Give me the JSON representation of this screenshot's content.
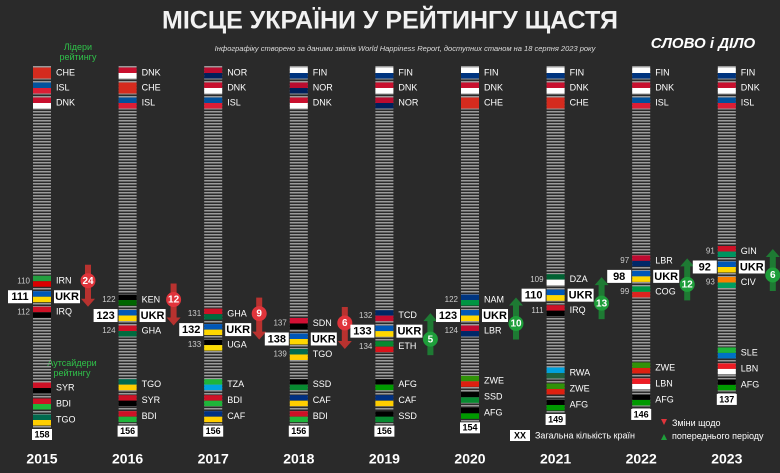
{
  "header": {
    "title": "МІСЦЕ УКРАЇНИ У РЕЙТИНГУ ЩАСТЯ",
    "subtitle": "Інфографіку створено за даними звітів World Happiness Report, доступних станом на 18 серпня 2023 року",
    "brand": "СЛОВО і ДІЛО"
  },
  "labels": {
    "leaders": "Лідери рейтингу",
    "outsiders": "Аутсайдери рейтингу",
    "legend_total_sample": "XX",
    "legend_total": "Загальна кількість країн",
    "legend_change": "Зміни щодо попереднього періоду"
  },
  "years": [
    {
      "year": "2015",
      "leaders": [
        {
          "code": "CHE",
          "flag": [
            "#d52b1e",
            "#d52b1e"
          ]
        },
        {
          "code": "ISL",
          "flag": [
            "#02529c",
            "#dc1e35"
          ]
        },
        {
          "code": "DNK",
          "flag": [
            "#c8102e",
            "#ffffff"
          ]
        }
      ],
      "near": [
        {
          "rank": 110,
          "code": "IRN",
          "flag": [
            "#239f40",
            "#da0000"
          ]
        },
        {
          "rank": 111,
          "code": "UKR",
          "flag": [
            "#0057b7",
            "#ffd700"
          ]
        },
        {
          "rank": 112,
          "code": "IRQ",
          "flag": [
            "#ce1126",
            "#000000"
          ]
        }
      ],
      "change": {
        "value": 24,
        "direction": "down"
      },
      "outsiders": [
        {
          "code": "SYR",
          "flag": [
            "#ce1126",
            "#000000"
          ]
        },
        {
          "code": "BDI",
          "flag": [
            "#ce1126",
            "#1eb53a"
          ]
        },
        {
          "code": "TGO",
          "flag": [
            "#006a4e",
            "#ffce00"
          ]
        }
      ],
      "total": 158
    },
    {
      "year": "2016",
      "leaders": [
        {
          "code": "DNK",
          "flag": [
            "#c8102e",
            "#ffffff"
          ]
        },
        {
          "code": "CHE",
          "flag": [
            "#d52b1e",
            "#d52b1e"
          ]
        },
        {
          "code": "ISL",
          "flag": [
            "#02529c",
            "#dc1e35"
          ]
        }
      ],
      "near": [
        {
          "rank": 122,
          "code": "KEN",
          "flag": [
            "#000000",
            "#006600"
          ]
        },
        {
          "rank": 123,
          "code": "UKR",
          "flag": [
            "#0057b7",
            "#ffd700"
          ]
        },
        {
          "rank": 124,
          "code": "GHA",
          "flag": [
            "#ce1126",
            "#006b3f"
          ]
        }
      ],
      "change": {
        "value": 12,
        "direction": "down"
      },
      "outsiders": [
        {
          "code": "TGO",
          "flag": [
            "#006a4e",
            "#ffce00"
          ]
        },
        {
          "code": "SYR",
          "flag": [
            "#ce1126",
            "#000000"
          ]
        },
        {
          "code": "BDI",
          "flag": [
            "#ce1126",
            "#1eb53a"
          ]
        }
      ],
      "total": 156
    },
    {
      "year": "2017",
      "leaders": [
        {
          "code": "NOR",
          "flag": [
            "#ba0c2f",
            "#00205b"
          ]
        },
        {
          "code": "DNK",
          "flag": [
            "#c8102e",
            "#ffffff"
          ]
        },
        {
          "code": "ISL",
          "flag": [
            "#02529c",
            "#dc1e35"
          ]
        }
      ],
      "near": [
        {
          "rank": 131,
          "code": "GHA",
          "flag": [
            "#ce1126",
            "#006b3f"
          ]
        },
        {
          "rank": 132,
          "code": "UKR",
          "flag": [
            "#0057b7",
            "#ffd700"
          ]
        },
        {
          "rank": 133,
          "code": "UGA",
          "flag": [
            "#000000",
            "#fcdc04"
          ]
        }
      ],
      "change": {
        "value": 9,
        "direction": "down"
      },
      "outsiders": [
        {
          "code": "TZA",
          "flag": [
            "#1eb53a",
            "#00a3dd"
          ]
        },
        {
          "code": "BDI",
          "flag": [
            "#ce1126",
            "#1eb53a"
          ]
        },
        {
          "code": "CAF",
          "flag": [
            "#003082",
            "#ffce00"
          ]
        }
      ],
      "total": 156
    },
    {
      "year": "2018",
      "leaders": [
        {
          "code": "FIN",
          "flag": [
            "#ffffff",
            "#003580"
          ]
        },
        {
          "code": "NOR",
          "flag": [
            "#ba0c2f",
            "#00205b"
          ]
        },
        {
          "code": "DNK",
          "flag": [
            "#c8102e",
            "#ffffff"
          ]
        }
      ],
      "near": [
        {
          "rank": 137,
          "code": "SDN",
          "flag": [
            "#d21034",
            "#000000"
          ]
        },
        {
          "rank": 138,
          "code": "UKR",
          "flag": [
            "#0057b7",
            "#ffd700"
          ]
        },
        {
          "rank": 139,
          "code": "TGO",
          "flag": [
            "#006a4e",
            "#ffce00"
          ]
        }
      ],
      "change": {
        "value": 6,
        "direction": "down"
      },
      "outsiders": [
        {
          "code": "SSD",
          "flag": [
            "#000000",
            "#078930"
          ]
        },
        {
          "code": "CAF",
          "flag": [
            "#003082",
            "#ffce00"
          ]
        },
        {
          "code": "BDI",
          "flag": [
            "#ce1126",
            "#1eb53a"
          ]
        }
      ],
      "total": 156
    },
    {
      "year": "2019",
      "leaders": [
        {
          "code": "FIN",
          "flag": [
            "#ffffff",
            "#003580"
          ]
        },
        {
          "code": "DNK",
          "flag": [
            "#c8102e",
            "#ffffff"
          ]
        },
        {
          "code": "NOR",
          "flag": [
            "#ba0c2f",
            "#00205b"
          ]
        }
      ],
      "near": [
        {
          "rank": 132,
          "code": "TCD",
          "flag": [
            "#002664",
            "#c60c30"
          ]
        },
        {
          "rank": 133,
          "code": "UKR",
          "flag": [
            "#0057b7",
            "#ffd700"
          ]
        },
        {
          "rank": 134,
          "code": "ETH",
          "flag": [
            "#078930",
            "#da121a"
          ]
        }
      ],
      "change": {
        "value": 5,
        "direction": "up"
      },
      "outsiders": [
        {
          "code": "AFG",
          "flag": [
            "#000000",
            "#009900"
          ]
        },
        {
          "code": "CAF",
          "flag": [
            "#003082",
            "#ffce00"
          ]
        },
        {
          "code": "SSD",
          "flag": [
            "#000000",
            "#078930"
          ]
        }
      ],
      "total": 156
    },
    {
      "year": "2020",
      "leaders": [
        {
          "code": "FIN",
          "flag": [
            "#ffffff",
            "#003580"
          ]
        },
        {
          "code": "DNK",
          "flag": [
            "#c8102e",
            "#ffffff"
          ]
        },
        {
          "code": "CHE",
          "flag": [
            "#d52b1e",
            "#d52b1e"
          ]
        }
      ],
      "near": [
        {
          "rank": 122,
          "code": "NAM",
          "flag": [
            "#003580",
            "#009543"
          ]
        },
        {
          "rank": 123,
          "code": "UKR",
          "flag": [
            "#0057b7",
            "#ffd700"
          ]
        },
        {
          "rank": 124,
          "code": "LBR",
          "flag": [
            "#bf0a30",
            "#002868"
          ]
        }
      ],
      "change": {
        "value": 10,
        "direction": "up"
      },
      "outsiders": [
        {
          "code": "ZWE",
          "flag": [
            "#319208",
            "#de2010"
          ]
        },
        {
          "code": "SSD",
          "flag": [
            "#000000",
            "#078930"
          ]
        },
        {
          "code": "AFG",
          "flag": [
            "#000000",
            "#009900"
          ]
        }
      ],
      "total": 154
    },
    {
      "year": "2021",
      "leaders": [
        {
          "code": "FIN",
          "flag": [
            "#ffffff",
            "#003580"
          ]
        },
        {
          "code": "DNK",
          "flag": [
            "#c8102e",
            "#ffffff"
          ]
        },
        {
          "code": "CHE",
          "flag": [
            "#d52b1e",
            "#d52b1e"
          ]
        }
      ],
      "near": [
        {
          "rank": 109,
          "code": "DZA",
          "flag": [
            "#006233",
            "#ffffff"
          ]
        },
        {
          "rank": 110,
          "code": "UKR",
          "flag": [
            "#0057b7",
            "#ffd700"
          ]
        },
        {
          "rank": 111,
          "code": "IRQ",
          "flag": [
            "#ce1126",
            "#000000"
          ]
        }
      ],
      "change": {
        "value": 13,
        "direction": "up"
      },
      "outsiders": [
        {
          "code": "RWA",
          "flag": [
            "#00a1de",
            "#20603d"
          ]
        },
        {
          "code": "ZWE",
          "flag": [
            "#319208",
            "#de2010"
          ]
        },
        {
          "code": "AFG",
          "flag": [
            "#000000",
            "#009900"
          ]
        }
      ],
      "total": 149
    },
    {
      "year": "2022",
      "leaders": [
        {
          "code": "FIN",
          "flag": [
            "#ffffff",
            "#003580"
          ]
        },
        {
          "code": "DNK",
          "flag": [
            "#c8102e",
            "#ffffff"
          ]
        },
        {
          "code": "ISL",
          "flag": [
            "#02529c",
            "#dc1e35"
          ]
        }
      ],
      "near": [
        {
          "rank": 97,
          "code": "LBR",
          "flag": [
            "#bf0a30",
            "#002868"
          ]
        },
        {
          "rank": 98,
          "code": "UKR",
          "flag": [
            "#0057b7",
            "#ffd700"
          ]
        },
        {
          "rank": 99,
          "code": "COG",
          "flag": [
            "#009543",
            "#dc241f"
          ]
        }
      ],
      "change": {
        "value": 12,
        "direction": "up"
      },
      "outsiders": [
        {
          "code": "ZWE",
          "flag": [
            "#319208",
            "#de2010"
          ]
        },
        {
          "code": "LBN",
          "flag": [
            "#ed1c24",
            "#ffffff"
          ]
        },
        {
          "code": "AFG",
          "flag": [
            "#000000",
            "#009900"
          ]
        }
      ],
      "total": 146
    },
    {
      "year": "2023",
      "leaders": [
        {
          "code": "FIN",
          "flag": [
            "#ffffff",
            "#003580"
          ]
        },
        {
          "code": "DNK",
          "flag": [
            "#c8102e",
            "#ffffff"
          ]
        },
        {
          "code": "ISL",
          "flag": [
            "#02529c",
            "#dc1e35"
          ]
        }
      ],
      "near": [
        {
          "rank": 91,
          "code": "GIN",
          "flag": [
            "#ce1126",
            "#009460"
          ]
        },
        {
          "rank": 92,
          "code": "UKR",
          "flag": [
            "#0057b7",
            "#ffd700"
          ]
        },
        {
          "rank": 93,
          "code": "CIV",
          "flag": [
            "#f77f00",
            "#009e60"
          ]
        }
      ],
      "change": {
        "value": 6,
        "direction": "up"
      },
      "outsiders": [
        {
          "code": "SLE",
          "flag": [
            "#1eb53a",
            "#0072c6"
          ]
        },
        {
          "code": "LBN",
          "flag": [
            "#ed1c24",
            "#ffffff"
          ]
        },
        {
          "code": "AFG",
          "flag": [
            "#000000",
            "#009900"
          ]
        }
      ],
      "total": 137
    }
  ]
}
